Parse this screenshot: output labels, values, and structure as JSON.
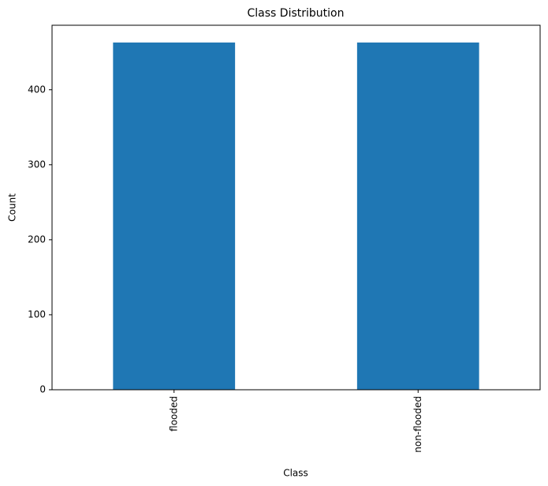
{
  "chart_data": {
    "type": "bar",
    "title": "Class Distribution",
    "x_label": "Class",
    "y_label": "Count",
    "categories": [
      "flooded",
      "non-flooded"
    ],
    "values": [
      463,
      463
    ],
    "color": "#1f77b4",
    "ylim": [
      0,
      486
    ],
    "yticks": [
      0,
      100,
      200,
      300,
      400
    ],
    "grid": false
  }
}
